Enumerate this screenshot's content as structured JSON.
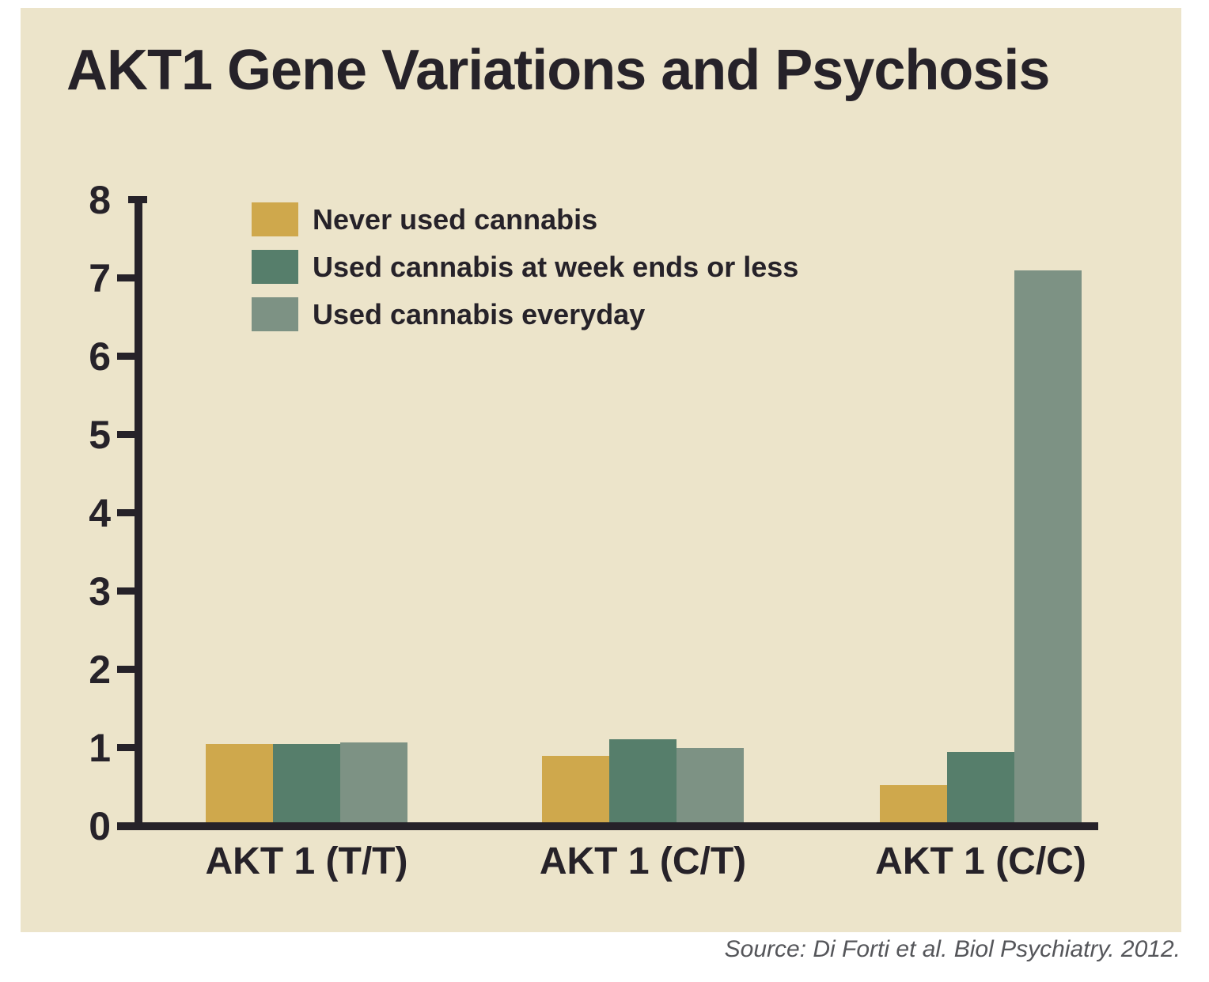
{
  "title": "AKT1 Gene Variations and Psychosis",
  "source": "Source: Di Forti et al. Biol Psychiatry. 2012.",
  "colors": {
    "panel_background": "#ece4ca",
    "page_background": "#ffffff",
    "ink": "#262229",
    "source_text": "#55565a",
    "series_gold": "#cfa84c",
    "series_teal": "#567e6b",
    "series_sage": "#7d9284"
  },
  "chart_data": {
    "type": "bar",
    "title": "AKT1 Gene Variations and Psychosis",
    "categories": [
      "AKT 1 (T/T)",
      "AKT 1 (C/T)",
      "AKT 1 (C/C)"
    ],
    "series": [
      {
        "name": "Never used cannabis",
        "color": "#cfa84c",
        "values": [
          1.0,
          0.85,
          0.47
        ]
      },
      {
        "name": "Used cannabis at week ends or less",
        "color": "#567e6b",
        "values": [
          1.0,
          1.06,
          0.9
        ]
      },
      {
        "name": "Used cannabis everyday",
        "color": "#7d9284",
        "values": [
          1.02,
          0.95,
          7.05
        ]
      }
    ],
    "xlabel": "",
    "ylabel": "",
    "ylim": [
      0,
      8
    ],
    "yticks": [
      0,
      1,
      2,
      3,
      4,
      5,
      6,
      7,
      8
    ],
    "grid": false,
    "legend_position": "top-left-inside-plot"
  }
}
